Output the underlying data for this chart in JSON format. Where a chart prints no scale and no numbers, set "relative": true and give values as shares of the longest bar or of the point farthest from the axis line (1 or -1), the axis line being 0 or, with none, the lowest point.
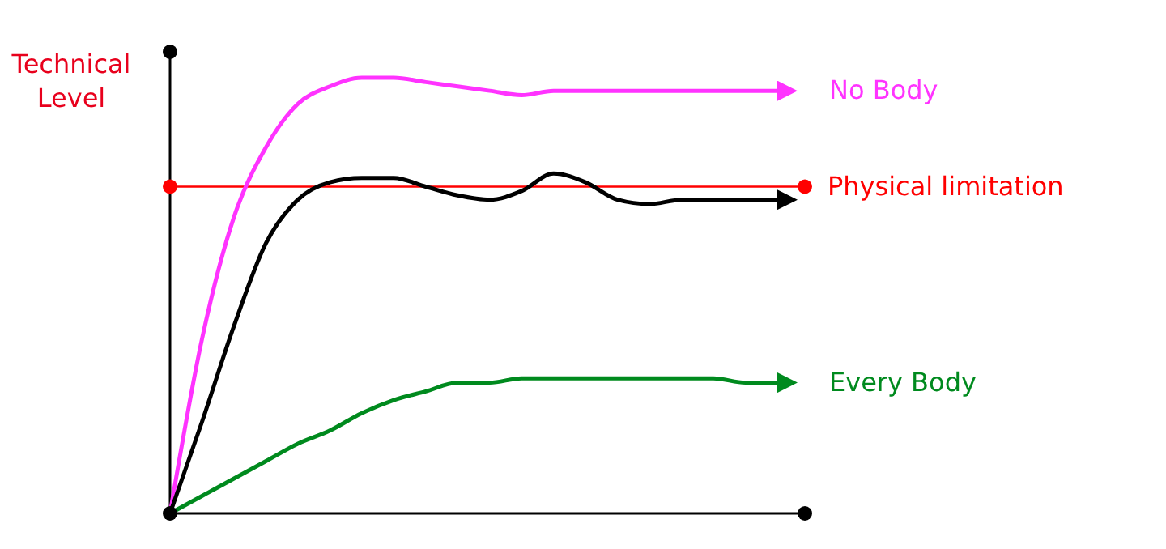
{
  "chart_data": {
    "type": "line",
    "relative": true,
    "ylabel": "Technical Level",
    "categories": [
      null,
      null,
      null,
      null,
      null,
      null,
      null,
      null,
      null,
      null,
      null,
      null,
      null,
      null,
      null,
      null,
      null,
      null,
      null,
      null
    ],
    "series": [
      {
        "name": "No Body",
        "color": "#ff33ff",
        "values": [
          0,
          0.4,
          0.68,
          0.84,
          0.94,
          0.98,
          1,
          1,
          0.99,
          0.98,
          0.97,
          0.96,
          0.97,
          0.97,
          0.97,
          0.97,
          0.97,
          0.97,
          0.97,
          0.97
        ]
      },
      {
        "color": "#000000",
        "values": [
          0,
          0.21,
          0.43,
          0.62,
          0.72,
          0.76,
          0.77,
          0.77,
          0.75,
          0.73,
          0.72,
          0.74,
          0.78,
          0.76,
          0.72,
          0.71,
          0.72,
          0.72,
          0.72,
          0.72
        ]
      },
      {
        "name": "Every Body",
        "color": "#008a1e",
        "values": [
          0,
          0.04,
          0.08,
          0.12,
          0.16,
          0.19,
          0.23,
          0.26,
          0.28,
          0.3,
          0.3,
          0.31,
          0.31,
          0.31,
          0.31,
          0.31,
          0.31,
          0.31,
          0.3,
          0.3
        ]
      }
    ],
    "ref_lines": [
      {
        "axis": "y",
        "value": 0.75,
        "label": "Physical limitation",
        "color": "#ff0000",
        "line_style": "solid"
      }
    ],
    "legend": "right",
    "marker": "none",
    "line_style": "solid"
  }
}
